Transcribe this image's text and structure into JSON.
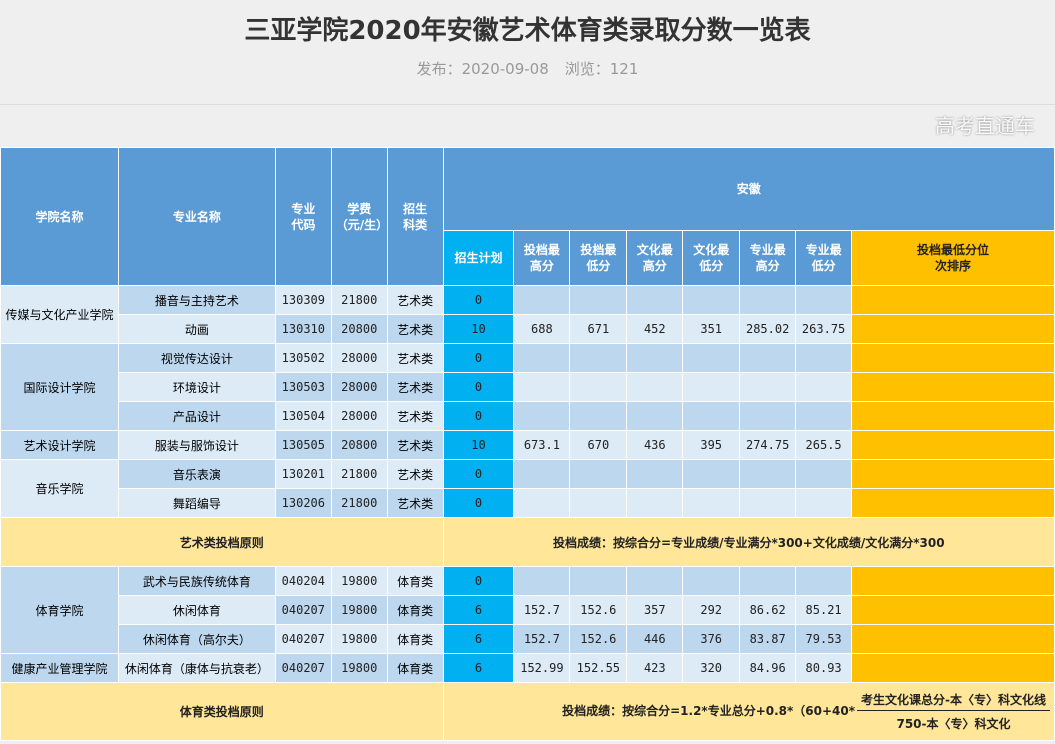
{
  "page": {
    "title": "三亚学院2020年安徽艺术体育类录取分数一览表",
    "publish": "发布：2020-09-08",
    "views": "浏览：121",
    "watermark": "高考直通车"
  },
  "colors": {
    "header": "#5b9bd5",
    "plan": "#00b0f0",
    "rank": "#ffc000",
    "principle": "#ffe699"
  },
  "headers": {
    "college": "学院名称",
    "major": "专业名称",
    "code": "专业代码",
    "fee": "学费（元/生）",
    "type": "招生科类",
    "province": "安徽",
    "plan": "招生计划",
    "tmax": "投档最高分",
    "tmin": "投档最低分",
    "cmax": "文化最高分",
    "cmin": "文化最低分",
    "pmax": "专业最高分",
    "pmin": "专业最低分",
    "rank": "投档最低分位次排序"
  },
  "art_rows": [
    {
      "college": "传媒与文化产业学院",
      "span": 2,
      "major": "播音与主持艺术",
      "code": "130309",
      "fee": "21800",
      "type": "艺术类",
      "plan": "0",
      "scores": [
        "",
        "",
        "",
        "",
        "",
        ""
      ]
    },
    {
      "major": "动画",
      "code": "130310",
      "fee": "20800",
      "type": "艺术类",
      "plan": "10",
      "scores": [
        "688",
        "671",
        "452",
        "351",
        "285.02",
        "263.75"
      ]
    },
    {
      "college": "国际设计学院",
      "span": 3,
      "major": "视觉传达设计",
      "code": "130502",
      "fee": "28000",
      "type": "艺术类",
      "plan": "0",
      "scores": [
        "",
        "",
        "",
        "",
        "",
        ""
      ]
    },
    {
      "major": "环境设计",
      "code": "130503",
      "fee": "28000",
      "type": "艺术类",
      "plan": "0",
      "scores": [
        "",
        "",
        "",
        "",
        "",
        ""
      ]
    },
    {
      "major": "产品设计",
      "code": "130504",
      "fee": "28000",
      "type": "艺术类",
      "plan": "0",
      "scores": [
        "",
        "",
        "",
        "",
        "",
        ""
      ]
    },
    {
      "college": "艺术设计学院",
      "span": 1,
      "major": "服装与服饰设计",
      "code": "130505",
      "fee": "20800",
      "type": "艺术类",
      "plan": "10",
      "scores": [
        "673.1",
        "670",
        "436",
        "395",
        "274.75",
        "265.5"
      ]
    },
    {
      "college": "音乐学院",
      "span": 2,
      "major": "音乐表演",
      "code": "130201",
      "fee": "21800",
      "type": "艺术类",
      "plan": "0",
      "scores": [
        "",
        "",
        "",
        "",
        "",
        ""
      ]
    },
    {
      "major": "舞蹈编导",
      "code": "130206",
      "fee": "21800",
      "type": "艺术类",
      "plan": "0",
      "scores": [
        "",
        "",
        "",
        "",
        "",
        ""
      ]
    }
  ],
  "art_principle": {
    "label": "艺术类投档原则",
    "text": "投档成绩：按综合分=专业成绩/专业满分*300+文化成绩/文化满分*300"
  },
  "sport_rows": [
    {
      "college": "体育学院",
      "span": 3,
      "major": "武术与民族传统体育",
      "code": "040204",
      "fee": "19800",
      "type": "体育类",
      "plan": "0",
      "scores": [
        "",
        "",
        "",
        "",
        "",
        ""
      ]
    },
    {
      "major": "休闲体育",
      "code": "040207",
      "fee": "19800",
      "type": "体育类",
      "plan": "6",
      "scores": [
        "152.7",
        "152.6",
        "357",
        "292",
        "86.62",
        "85.21"
      ]
    },
    {
      "major": "休闲体育（高尔夫）",
      "code": "040207",
      "fee": "19800",
      "type": "体育类",
      "plan": "6",
      "scores": [
        "152.7",
        "152.6",
        "446",
        "376",
        "83.87",
        "79.53"
      ]
    },
    {
      "college": "健康产业管理学院",
      "span": 1,
      "major": "休闲体育（康体与抗衰老）",
      "code": "040207",
      "fee": "19800",
      "type": "体育类",
      "plan": "6",
      "scores": [
        "152.99",
        "152.55",
        "423",
        "320",
        "84.96",
        "80.93"
      ]
    }
  ],
  "sport_principle": {
    "label": "体育类投档原则",
    "text": "投档成绩：按综合分=1.2*专业总分+0.8*（60+40*",
    "numerator": "考生文化课总分-本〈专〉科文化线",
    "denominator": "750-本〈专〉科文化"
  }
}
